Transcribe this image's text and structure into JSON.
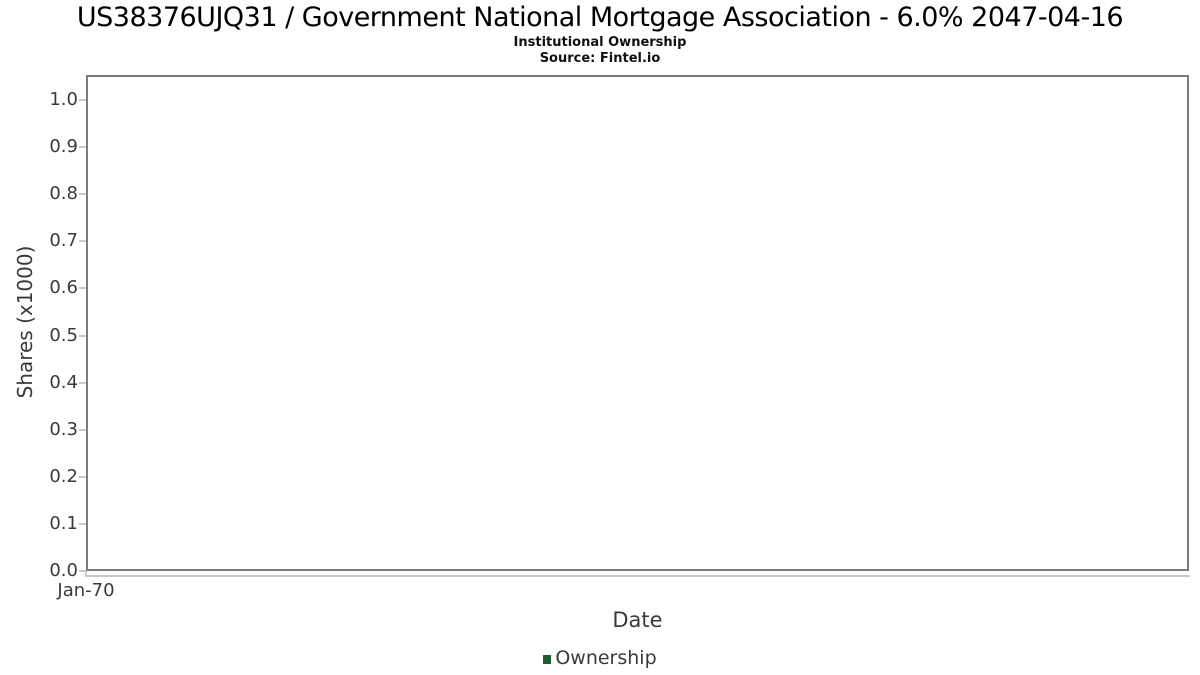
{
  "header": {
    "title": "US38376UJQ31 / Government National Mortgage Association - 6.0% 2047-04-16",
    "subtitle": "Institutional Ownership",
    "source": "Source: Fintel.io"
  },
  "chart_data": {
    "type": "line",
    "title": "US38376UJQ31 / Government National Mortgage Association - 6.0% 2047-04-16",
    "subtitle": "Institutional Ownership",
    "source": "Source: Fintel.io",
    "xlabel": "Date",
    "ylabel": "Shares (x1000)",
    "x_tick_labels": [
      "Jan-70"
    ],
    "y_ticks": [
      0.0,
      0.1,
      0.2,
      0.3,
      0.4,
      0.5,
      0.6,
      0.7,
      0.8,
      0.9,
      1.0
    ],
    "y_tick_labels": [
      "0.0",
      "0.1",
      "0.2",
      "0.3",
      "0.4",
      "0.5",
      "0.6",
      "0.7",
      "0.8",
      "0.9",
      "1.0"
    ],
    "ylim": [
      0.0,
      1.053
    ],
    "grid": "horizontal",
    "legend": {
      "position": "bottom",
      "entries": [
        {
          "label": "Ownership",
          "color": "#1f5c2e"
        }
      ]
    },
    "series": [
      {
        "name": "Ownership",
        "x": [],
        "values": []
      }
    ],
    "colors": {
      "gridline": "#e7e7e7",
      "plot_border": "#7d7d7d",
      "axis_line": "#c9c9c9",
      "tick_text": "#3a3a3a",
      "title_text": "#000000"
    }
  }
}
